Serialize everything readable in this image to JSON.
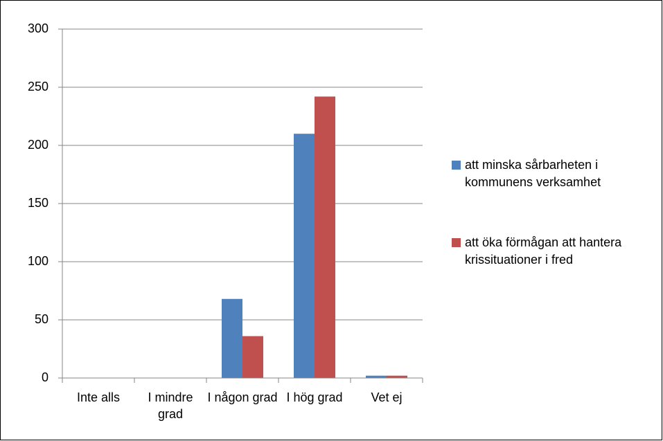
{
  "chart_data": {
    "type": "bar",
    "categories": [
      "Inte alls",
      "I mindre grad",
      "I någon grad",
      "I hög grad",
      "Vet ej"
    ],
    "series": [
      {
        "name": "att minska sårbarheten i kommunens verksamhet",
        "color": "#4f81bd",
        "values": [
          0,
          0,
          68,
          210,
          2
        ]
      },
      {
        "name": "att öka förmågan att hantera krissituationer i fred",
        "color": "#c0504d",
        "values": [
          0,
          0,
          36,
          242,
          2
        ]
      }
    ],
    "ylim": [
      0,
      300
    ],
    "yticks": [
      0,
      50,
      100,
      150,
      200,
      250,
      300
    ],
    "grid": true,
    "legend": "right"
  }
}
